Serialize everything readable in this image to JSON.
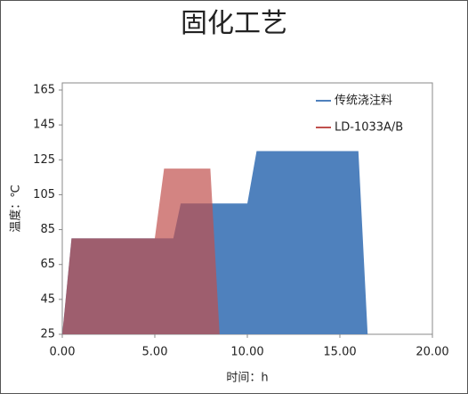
{
  "chart_data": {
    "type": "area",
    "title": "固化工艺",
    "x_label": "时间：h",
    "y_label": "温度：℃",
    "xlim": [
      0,
      20
    ],
    "ylim": [
      25,
      165
    ],
    "xticks": [
      {
        "value": 0,
        "label": "0.00"
      },
      {
        "value": 5,
        "label": "5.00"
      },
      {
        "value": 10,
        "label": "10.00"
      },
      {
        "value": 15,
        "label": "15.00"
      },
      {
        "value": 20,
        "label": "20.00"
      }
    ],
    "yticks": [
      25,
      45,
      65,
      85,
      105,
      125,
      145,
      165
    ],
    "legend": "top-right",
    "series": [
      {
        "name": "传统浇注料",
        "color": "#4f81bd",
        "x": [
          0,
          0.5,
          6,
          6.4,
          10,
          10.5,
          16,
          16.5
        ],
        "values": [
          25,
          80,
          80,
          100,
          100,
          130,
          130,
          25
        ]
      },
      {
        "name": "LD-1033A/B",
        "color": "#c0504d",
        "x": [
          0,
          0.5,
          5,
          5.5,
          8,
          8.5
        ],
        "values": [
          25,
          80,
          80,
          120,
          120,
          25
        ]
      }
    ]
  }
}
